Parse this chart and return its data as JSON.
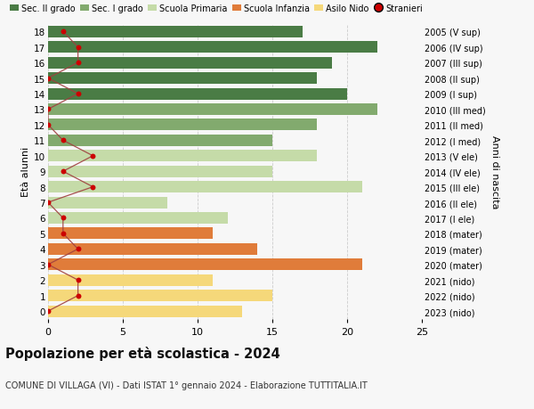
{
  "ages": [
    18,
    17,
    16,
    15,
    14,
    13,
    12,
    11,
    10,
    9,
    8,
    7,
    6,
    5,
    4,
    3,
    2,
    1,
    0
  ],
  "right_labels": [
    "2005 (V sup)",
    "2006 (IV sup)",
    "2007 (III sup)",
    "2008 (II sup)",
    "2009 (I sup)",
    "2010 (III med)",
    "2011 (II med)",
    "2012 (I med)",
    "2013 (V ele)",
    "2014 (IV ele)",
    "2015 (III ele)",
    "2016 (II ele)",
    "2017 (I ele)",
    "2018 (mater)",
    "2019 (mater)",
    "2020 (mater)",
    "2021 (nido)",
    "2022 (nido)",
    "2023 (nido)"
  ],
  "bar_values": [
    17,
    22,
    19,
    18,
    20,
    22,
    18,
    15,
    18,
    15,
    21,
    8,
    12,
    11,
    14,
    21,
    11,
    15,
    13
  ],
  "bar_colors": [
    "#4a7c45",
    "#4a7c45",
    "#4a7c45",
    "#4a7c45",
    "#4a7c45",
    "#82aa6e",
    "#82aa6e",
    "#82aa6e",
    "#c5dba8",
    "#c5dba8",
    "#c5dba8",
    "#c5dba8",
    "#c5dba8",
    "#e07c3a",
    "#e07c3a",
    "#e07c3a",
    "#f5d87a",
    "#f5d87a",
    "#f5d87a"
  ],
  "stranieri_x": [
    1,
    2,
    2,
    0,
    2,
    0,
    0,
    1,
    3,
    1,
    3,
    0,
    1,
    1,
    2,
    0,
    2,
    2,
    0
  ],
  "title": "Popolazione per età scolastica - 2024",
  "subtitle": "COMUNE DI VILLAGA (VI) - Dati ISTAT 1° gennaio 2024 - Elaborazione TUTTITALIA.IT",
  "ylabel_left": "Età alunni",
  "ylabel_right": "Anni di nascita",
  "legend_labels": [
    "Sec. II grado",
    "Sec. I grado",
    "Scuola Primaria",
    "Scuola Infanzia",
    "Asilo Nido",
    "Stranieri"
  ],
  "legend_colors": [
    "#4a7c45",
    "#82aa6e",
    "#c5dba8",
    "#e07c3a",
    "#f5d87a",
    "#cc0000"
  ],
  "xlim": [
    0,
    25
  ],
  "background_color": "#f7f7f7",
  "grid_color": "#cccccc"
}
